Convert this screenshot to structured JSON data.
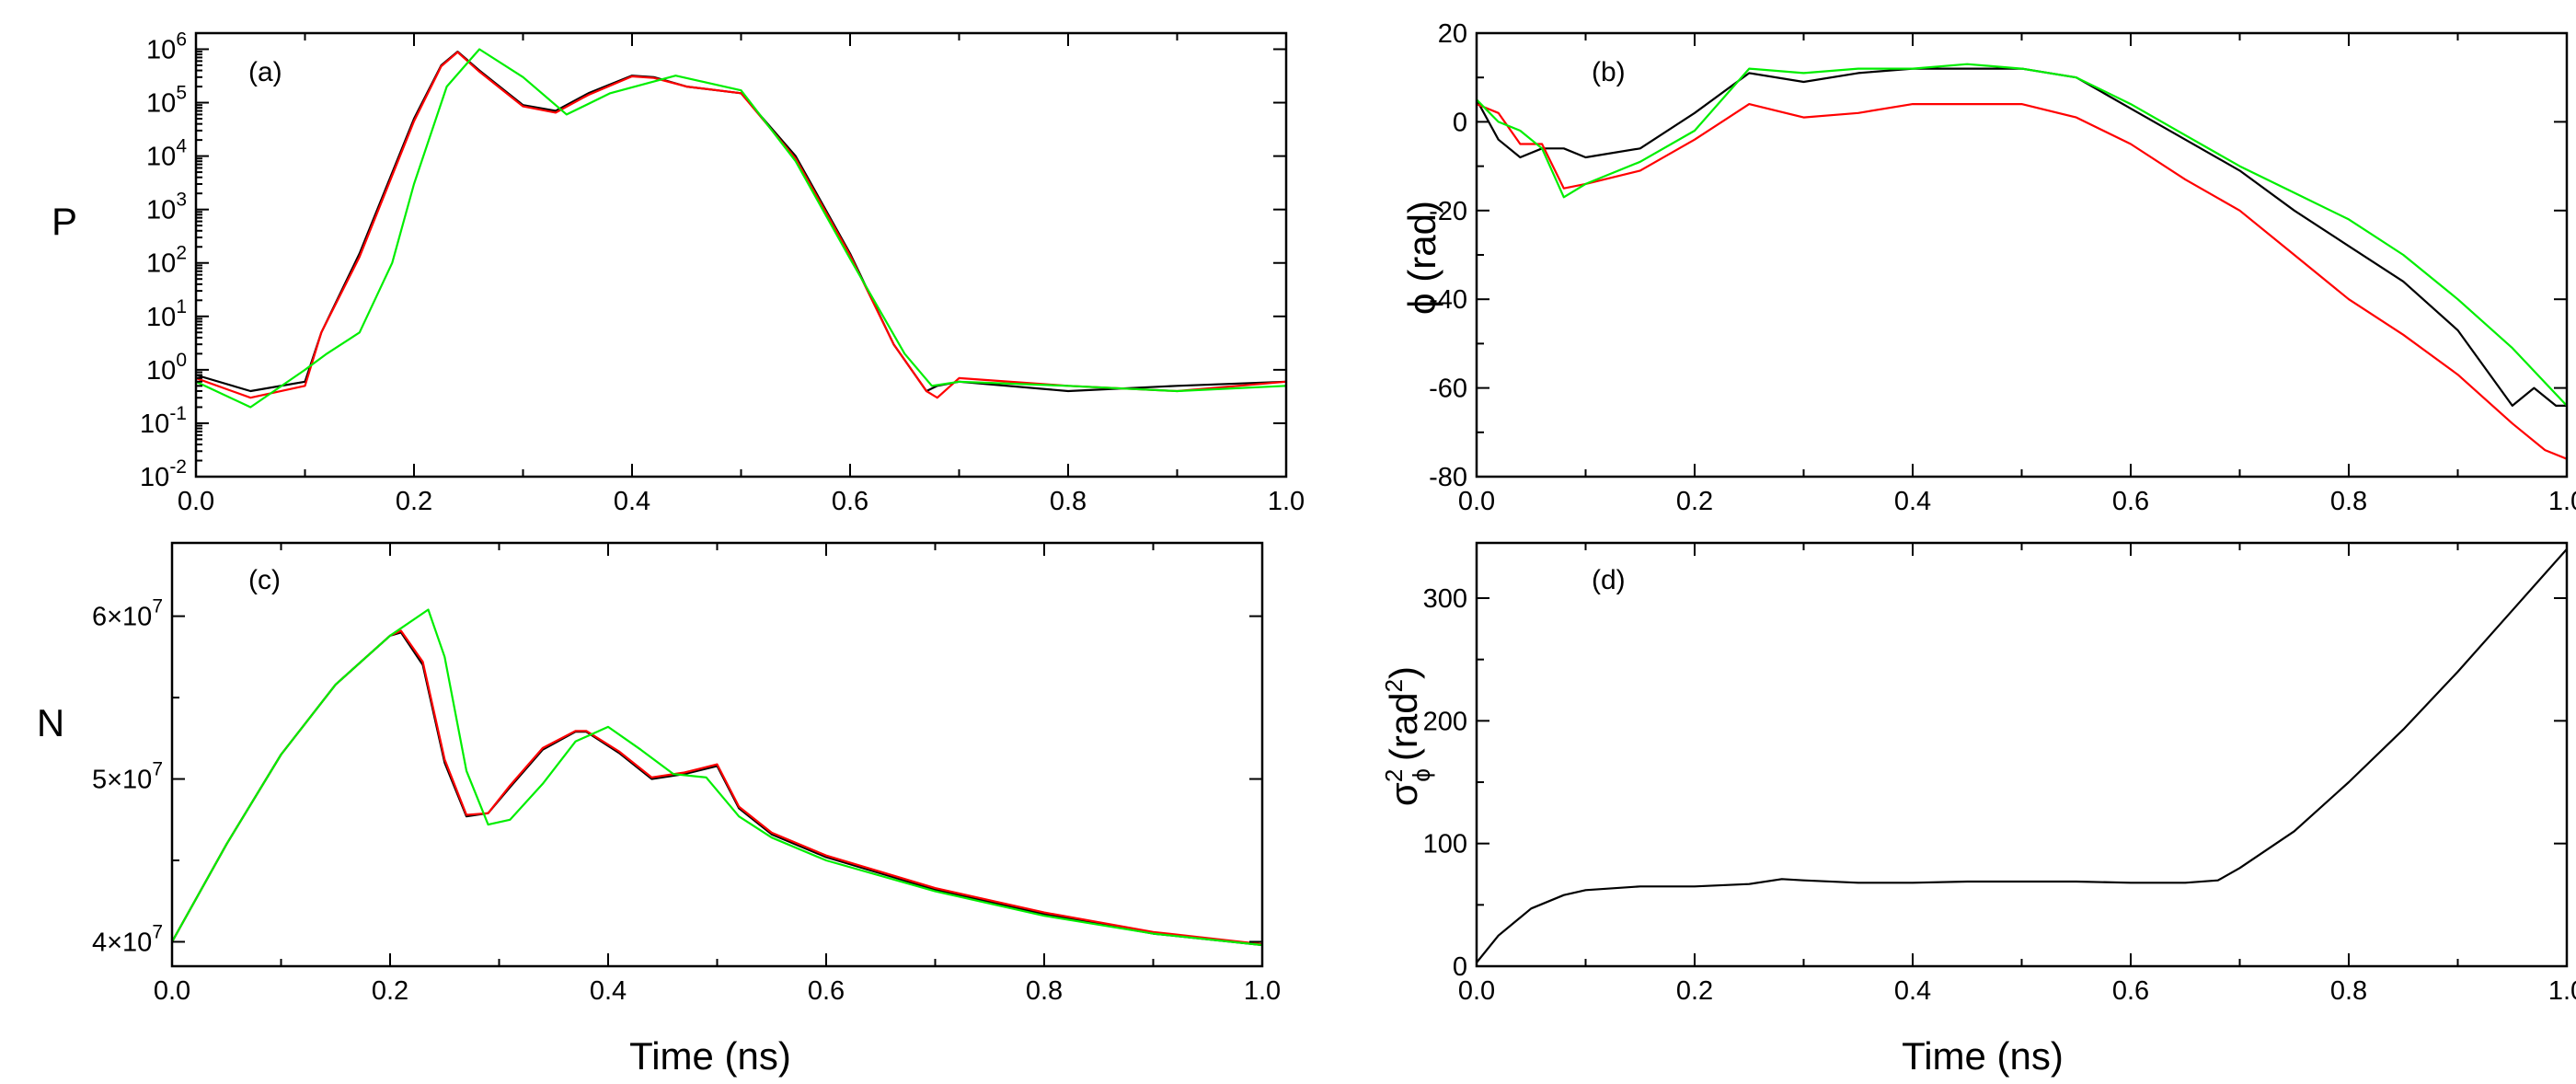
{
  "figure": {
    "shared_x_title": "Time (ns)",
    "x_ticks": [
      "0.0",
      "0.2",
      "0.4",
      "0.6",
      "0.8",
      "1.0"
    ]
  },
  "chart_data": [
    {
      "id": "a",
      "type": "line",
      "panel_label": "(a)",
      "ylabel": "P",
      "xlabel": "",
      "yscale": "log",
      "xlim": [
        0,
        1
      ],
      "ylim": [
        0.01,
        2000000
      ],
      "y_ticks": [
        {
          "base": "10",
          "exp": "-2"
        },
        {
          "base": "10",
          "exp": "-1"
        },
        {
          "base": "10",
          "exp": "0"
        },
        {
          "base": "10",
          "exp": "1"
        },
        {
          "base": "10",
          "exp": "2"
        },
        {
          "base": "10",
          "exp": "3"
        },
        {
          "base": "10",
          "exp": "4"
        },
        {
          "base": "10",
          "exp": "5"
        },
        {
          "base": "10",
          "exp": "6"
        }
      ],
      "series": [
        {
          "name": "black",
          "color": "#000000",
          "x": [
            0,
            0.05,
            0.1,
            0.115,
            0.15,
            0.2,
            0.225,
            0.24,
            0.26,
            0.3,
            0.33,
            0.36,
            0.4,
            0.42,
            0.45,
            0.5,
            0.55,
            0.6,
            0.64,
            0.67,
            0.68,
            0.7,
            0.8,
            0.9,
            1.0
          ],
          "y": [
            0.8,
            0.4,
            0.6,
            5,
            150,
            50000,
            500000,
            900000,
            400000,
            90000,
            70000,
            150000,
            320000,
            300000,
            200000,
            150000,
            10000,
            150,
            3,
            0.4,
            0.5,
            0.6,
            0.4,
            0.5,
            0.6
          ]
        },
        {
          "name": "red",
          "color": "#ff0000",
          "x": [
            0,
            0.05,
            0.1,
            0.115,
            0.15,
            0.2,
            0.225,
            0.24,
            0.26,
            0.3,
            0.33,
            0.36,
            0.4,
            0.42,
            0.45,
            0.5,
            0.55,
            0.6,
            0.64,
            0.67,
            0.68,
            0.7,
            0.8,
            0.9,
            1.0
          ],
          "y": [
            0.7,
            0.3,
            0.5,
            5,
            130,
            45000,
            480000,
            880000,
            380000,
            85000,
            65000,
            140000,
            310000,
            290000,
            200000,
            150000,
            9000,
            140,
            3,
            0.4,
            0.3,
            0.7,
            0.5,
            0.4,
            0.6
          ]
        },
        {
          "name": "green",
          "color": "#00ee00",
          "x": [
            0,
            0.05,
            0.1,
            0.12,
            0.15,
            0.18,
            0.2,
            0.23,
            0.26,
            0.3,
            0.34,
            0.38,
            0.44,
            0.5,
            0.55,
            0.6,
            0.65,
            0.675,
            0.7,
            0.8,
            0.9,
            1.0
          ],
          "y": [
            0.6,
            0.2,
            1,
            2,
            5,
            100,
            3000,
            200000,
            1000000,
            300000,
            60000,
            150000,
            320000,
            170000,
            8000,
            120,
            2,
            0.5,
            0.6,
            0.5,
            0.4,
            0.5
          ]
        }
      ]
    },
    {
      "id": "b",
      "type": "line",
      "panel_label": "(b)",
      "ylabel": "ϕ (rad)",
      "xlabel": "",
      "xlim": [
        0,
        1
      ],
      "ylim": [
        -80,
        20
      ],
      "y_ticks": [
        "-80",
        "-60",
        "-40",
        "-20",
        "0",
        "20"
      ],
      "series": [
        {
          "name": "black",
          "color": "#000000",
          "x": [
            0,
            0.02,
            0.04,
            0.06,
            0.08,
            0.1,
            0.15,
            0.2,
            0.25,
            0.3,
            0.35,
            0.4,
            0.45,
            0.5,
            0.55,
            0.6,
            0.65,
            0.7,
            0.75,
            0.8,
            0.85,
            0.9,
            0.95,
            0.97,
            0.99,
            1.0
          ],
          "y": [
            5,
            -4,
            -8,
            -6,
            -6,
            -8,
            -6,
            2,
            11,
            9,
            11,
            12,
            12,
            12,
            10,
            3,
            -4,
            -11,
            -20,
            -28,
            -36,
            -47,
            -64,
            -60,
            -64,
            -64
          ]
        },
        {
          "name": "red",
          "color": "#ff0000",
          "x": [
            0,
            0.02,
            0.04,
            0.06,
            0.08,
            0.1,
            0.15,
            0.2,
            0.25,
            0.3,
            0.35,
            0.4,
            0.45,
            0.5,
            0.55,
            0.6,
            0.65,
            0.7,
            0.75,
            0.8,
            0.85,
            0.9,
            0.95,
            0.98,
            1.0
          ],
          "y": [
            4,
            2,
            -5,
            -5,
            -15,
            -14,
            -11,
            -4,
            4,
            1,
            2,
            4,
            4,
            4,
            1,
            -5,
            -13,
            -20,
            -30,
            -40,
            -48,
            -57,
            -68,
            -74,
            -76
          ]
        },
        {
          "name": "green",
          "color": "#00ee00",
          "x": [
            0,
            0.02,
            0.04,
            0.06,
            0.08,
            0.1,
            0.15,
            0.2,
            0.25,
            0.3,
            0.35,
            0.4,
            0.45,
            0.5,
            0.55,
            0.6,
            0.65,
            0.7,
            0.75,
            0.8,
            0.85,
            0.9,
            0.95,
            1.0
          ],
          "y": [
            5,
            0,
            -2,
            -6,
            -17,
            -14,
            -9,
            -2,
            12,
            11,
            12,
            12,
            13,
            12,
            10,
            4,
            -3,
            -10,
            -16,
            -22,
            -30,
            -40,
            -51,
            -64
          ]
        }
      ]
    },
    {
      "id": "c",
      "type": "line",
      "panel_label": "(c)",
      "ylabel": "N",
      "xlabel": "Time (ns)",
      "xlim": [
        0,
        1
      ],
      "ylim": [
        38500000,
        64500000
      ],
      "y_ticks": [
        {
          "mant": "4×10",
          "exp": "7"
        },
        {
          "mant": "5×10",
          "exp": "7"
        },
        {
          "mant": "6×10",
          "exp": "7"
        }
      ],
      "series": [
        {
          "name": "black",
          "color": "#000000",
          "x": [
            0,
            0.05,
            0.1,
            0.15,
            0.2,
            0.21,
            0.23,
            0.25,
            0.27,
            0.29,
            0.31,
            0.34,
            0.37,
            0.38,
            0.41,
            0.44,
            0.47,
            0.5,
            0.52,
            0.55,
            0.6,
            0.7,
            0.8,
            0.9,
            1.0
          ],
          "y": [
            40000000,
            46000000,
            51500000,
            55800000,
            58800000,
            59000000,
            57000000,
            51000000,
            47700000,
            47900000,
            49500000,
            51800000,
            52900000,
            52900000,
            51600000,
            50000000,
            50300000,
            50800000,
            48200000,
            46600000,
            45200000,
            43200000,
            41700000,
            40500000,
            39800000
          ]
        },
        {
          "name": "red",
          "color": "#ff0000",
          "x": [
            0,
            0.05,
            0.1,
            0.15,
            0.2,
            0.21,
            0.23,
            0.25,
            0.27,
            0.29,
            0.31,
            0.34,
            0.37,
            0.38,
            0.41,
            0.44,
            0.47,
            0.5,
            0.52,
            0.55,
            0.6,
            0.7,
            0.8,
            0.9,
            1.0
          ],
          "y": [
            40000000,
            46000000,
            51500000,
            55800000,
            58800000,
            59100000,
            57200000,
            51200000,
            47800000,
            47900000,
            49600000,
            51900000,
            52950000,
            52950000,
            51700000,
            50100000,
            50400000,
            50900000,
            48300000,
            46700000,
            45300000,
            43300000,
            41800000,
            40600000,
            39850000
          ]
        },
        {
          "name": "green",
          "color": "#00ee00",
          "x": [
            0,
            0.05,
            0.1,
            0.15,
            0.2,
            0.235,
            0.25,
            0.27,
            0.29,
            0.31,
            0.34,
            0.37,
            0.4,
            0.43,
            0.46,
            0.49,
            0.52,
            0.55,
            0.6,
            0.7,
            0.8,
            0.9,
            1.0
          ],
          "y": [
            40000000,
            46000000,
            51500000,
            55800000,
            58800000,
            60400000,
            57500000,
            50500000,
            47200000,
            47500000,
            49700000,
            52300000,
            53200000,
            51800000,
            50300000,
            50100000,
            47700000,
            46400000,
            45000000,
            43100000,
            41600000,
            40500000,
            39800000
          ]
        }
      ]
    },
    {
      "id": "d",
      "type": "line",
      "panel_label": "(d)",
      "ylabel_base": "σ",
      "ylabel_sub": "ϕ",
      "ylabel_sup": "2",
      "ylabel_unit": "(rad",
      "ylabel_unit_sup": "2",
      "ylabel_close": ")",
      "xlabel": "Time (ns)",
      "xlim": [
        0,
        1
      ],
      "ylim": [
        0,
        345
      ],
      "y_ticks": [
        "0",
        "100",
        "200",
        "300"
      ],
      "series": [
        {
          "name": "black",
          "color": "#000000",
          "x": [
            0,
            0.02,
            0.05,
            0.08,
            0.1,
            0.15,
            0.2,
            0.25,
            0.28,
            0.3,
            0.35,
            0.4,
            0.45,
            0.5,
            0.55,
            0.6,
            0.65,
            0.68,
            0.7,
            0.75,
            0.8,
            0.85,
            0.9,
            0.95,
            1.0
          ],
          "y": [
            3,
            25,
            47,
            58,
            62,
            65,
            65,
            67,
            71,
            70,
            68,
            68,
            69,
            69,
            69,
            68,
            68,
            70,
            80,
            110,
            150,
            193,
            240,
            290,
            340
          ]
        }
      ]
    }
  ]
}
